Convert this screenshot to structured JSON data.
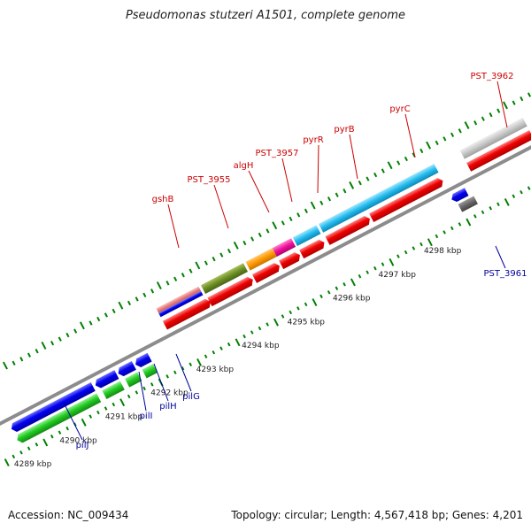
{
  "title": "Pseudomonas stutzeri A1501, complete genome",
  "footer": {
    "accession": "Accession: NC_009434",
    "summary": "Topology: circular; Length: 4,567,418 bp; Genes: 4,201"
  },
  "colors": {
    "forward_label": "#cc0000",
    "reverse_label": "#000099",
    "backbone": "#999999",
    "tick": "#008000",
    "cds_red": "#ee0000",
    "cds_blue": "#0000ee",
    "cds_green": "#22cc22"
  },
  "scale_labels": [
    {
      "kbp": 4289,
      "text": "4289 kbp"
    },
    {
      "kbp": 4290,
      "text": "4290 kbp"
    },
    {
      "kbp": 4291,
      "text": "4291 kbp"
    },
    {
      "kbp": 4292,
      "text": "4292 kbp"
    },
    {
      "kbp": 4293,
      "text": "4293 kbp"
    },
    {
      "kbp": 4294,
      "text": "4294 kbp"
    },
    {
      "kbp": 4295,
      "text": "4295 kbp"
    },
    {
      "kbp": 4296,
      "text": "4296 kbp"
    },
    {
      "kbp": 4297,
      "text": "4297 kbp"
    },
    {
      "kbp": 4298,
      "text": "4298 kbp"
    }
  ],
  "gene_labels": [
    {
      "text": "gshB",
      "strand": "forward"
    },
    {
      "text": "PST_3955",
      "strand": "forward"
    },
    {
      "text": "algH",
      "strand": "forward"
    },
    {
      "text": "PST_3957",
      "strand": "forward"
    },
    {
      "text": "pyrR",
      "strand": "forward"
    },
    {
      "text": "pyrB",
      "strand": "forward"
    },
    {
      "text": "pyrC",
      "strand": "forward"
    },
    {
      "text": "PST_3962",
      "strand": "forward"
    },
    {
      "text": "PST_3961",
      "strand": "reverse"
    },
    {
      "text": "pilJ",
      "strand": "reverse"
    },
    {
      "text": "pilI",
      "strand": "reverse"
    },
    {
      "text": "pilH",
      "strand": "reverse"
    },
    {
      "text": "pilG",
      "strand": "reverse"
    }
  ]
}
